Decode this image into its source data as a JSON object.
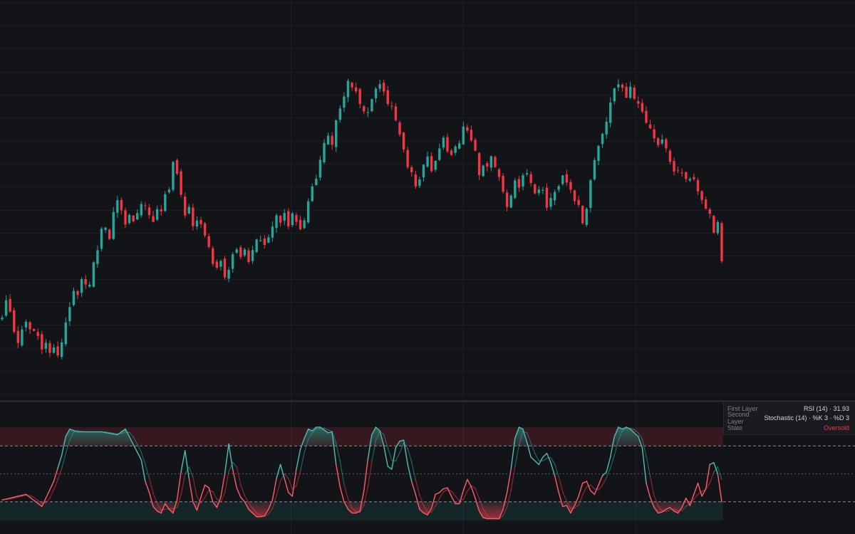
{
  "chart_data": [
    {
      "type": "candlestick",
      "title": "",
      "up_color": "#26a69a",
      "down_color": "#f23645",
      "grid": true,
      "bars": [
        [
          1,
          428
        ],
        [
          2,
          438
        ],
        [
          3,
          432
        ],
        [
          4,
          416
        ],
        [
          5,
          412
        ],
        [
          6,
          419
        ],
        [
          7,
          424
        ],
        [
          8,
          421
        ],
        [
          9,
          420
        ],
        [
          10,
          414
        ],
        [
          11,
          405
        ],
        [
          12,
          409
        ],
        [
          13,
          404
        ],
        [
          14,
          407
        ],
        [
          15,
          402
        ],
        [
          16,
          409
        ],
        [
          17,
          423
        ],
        [
          18,
          434
        ],
        [
          19,
          445
        ],
        [
          20,
          440
        ],
        [
          21,
          452
        ],
        [
          22,
          449
        ],
        [
          23,
          447
        ],
        [
          24,
          460
        ],
        [
          25,
          470
        ],
        [
          26,
          481
        ],
        [
          27,
          485
        ],
        [
          28,
          478
        ],
        [
          29,
          492
        ],
        [
          30,
          500
        ],
        [
          31,
          496
        ],
        [
          32,
          487
        ],
        [
          33,
          493
        ],
        [
          34,
          488
        ],
        [
          35,
          491
        ],
        [
          36,
          499
        ],
        [
          37,
          496
        ],
        [
          38,
          492
        ],
        [
          39,
          488
        ],
        [
          40,
          495
        ],
        [
          41,
          494
        ],
        [
          42,
          503
        ],
        [
          43,
          509
        ],
        [
          44,
          523
        ],
        [
          45,
          517
        ],
        [
          46,
          505
        ],
        [
          47,
          491
        ],
        [
          48,
          498
        ],
        [
          49,
          484
        ],
        [
          50,
          489
        ],
        [
          51,
          487
        ],
        [
          52,
          478
        ],
        [
          53,
          471
        ],
        [
          54,
          460
        ],
        [
          55,
          458
        ],
        [
          56,
          461
        ],
        [
          57,
          453
        ],
        [
          58,
          457
        ],
        [
          59,
          465
        ],
        [
          60,
          469
        ],
        [
          61,
          466
        ],
        [
          62,
          470
        ],
        [
          63,
          462
        ],
        [
          64,
          470
        ],
        [
          65,
          475
        ],
        [
          66,
          477
        ],
        [
          67,
          471
        ],
        [
          68,
          478
        ],
        [
          69,
          485
        ],
        [
          70,
          490
        ],
        [
          71,
          486
        ],
        [
          72,
          493
        ],
        [
          73,
          483
        ],
        [
          74,
          491
        ],
        [
          75,
          488
        ],
        [
          76,
          484
        ],
        [
          77,
          489
        ],
        [
          78,
          499
        ],
        [
          79,
          508
        ],
        [
          80,
          514
        ],
        [
          81,
          527
        ],
        [
          82,
          536
        ],
        [
          83,
          541
        ],
        [
          84,
          537
        ],
        [
          85,
          552
        ],
        [
          86,
          557
        ],
        [
          87,
          567
        ],
        [
          88,
          575
        ],
        [
          89,
          571
        ],
        [
          90,
          568
        ],
        [
          91,
          563
        ],
        [
          92,
          557
        ],
        [
          93,
          555
        ],
        [
          94,
          566
        ],
        [
          95,
          570
        ],
        [
          96,
          574
        ],
        [
          97,
          568
        ],
        [
          98,
          562
        ],
        [
          99,
          558
        ],
        [
          100,
          551
        ],
        [
          101,
          540
        ],
        [
          102,
          532
        ],
        [
          103,
          522
        ],
        [
          104,
          518
        ],
        [
          105,
          508
        ],
        [
          106,
          512
        ],
        [
          107,
          522
        ],
        [
          108,
          528
        ],
        [
          109,
          518
        ],
        [
          110,
          525
        ],
        [
          111,
          535
        ],
        [
          112,
          540
        ],
        [
          113,
          532
        ],
        [
          114,
          529
        ],
        [
          115,
          534
        ],
        [
          116,
          537
        ],
        [
          117,
          545
        ],
        [
          118,
          545
        ],
        [
          119,
          540
        ],
        [
          120,
          530
        ],
        [
          121,
          518
        ],
        [
          122,
          524
        ],
        [
          123,
          521
        ],
        [
          124,
          527
        ],
        [
          125,
          523
        ],
        [
          126,
          514
        ],
        [
          127,
          506
        ],
        [
          128,
          495
        ],
        [
          129,
          505
        ],
        [
          130,
          513
        ],
        [
          131,
          510
        ],
        [
          132,
          516
        ],
        [
          133,
          518
        ],
        [
          134,
          512
        ],
        [
          135,
          505
        ],
        [
          136,
          508
        ],
        [
          137,
          505
        ],
        [
          138,
          494
        ],
        [
          139,
          500
        ],
        [
          140,
          507
        ],
        [
          141,
          511
        ],
        [
          142,
          518
        ],
        [
          143,
          512
        ],
        [
          144,
          509
        ],
        [
          145,
          499
        ],
        [
          146,
          496
        ],
        [
          147,
          486
        ],
        [
          148,
          494
        ],
        [
          149,
          512
        ],
        [
          150,
          524
        ],
        [
          151,
          533
        ],
        [
          152,
          542
        ],
        [
          153,
          549
        ],
        [
          154,
          561
        ],
        [
          155,
          569
        ],
        [
          156,
          573
        ],
        [
          157,
          570
        ],
        [
          158,
          566
        ],
        [
          159,
          572
        ],
        [
          160,
          564
        ],
        [
          161,
          561
        ],
        [
          162,
          557
        ],
        [
          163,
          550
        ],
        [
          164,
          546
        ],
        [
          165,
          540
        ],
        [
          166,
          535
        ],
        [
          167,
          537
        ],
        [
          168,
          533
        ],
        [
          169,
          525
        ],
        [
          170,
          520
        ],
        [
          171,
          521
        ],
        [
          172,
          518
        ],
        [
          173,
          515
        ],
        [
          174,
          512
        ],
        [
          175,
          512
        ],
        [
          176,
          505
        ],
        [
          177,
          500
        ],
        [
          178,
          495
        ],
        [
          179,
          492
        ],
        [
          180,
          480
        ],
        [
          181,
          488
        ],
        [
          182,
          469
        ]
      ],
      "oscillators": {
        "layout": "stacked two-layer",
        "overbought_level": 80,
        "middle_level": 50,
        "oversold_level": 20,
        "first_layer": "RSI (14)",
        "second_layer": "Stochastic (14) · %K 3 · %D 3",
        "stochastic_k_over_bars": [
          [
            1,
            22
          ],
          [
            7,
            28
          ],
          [
            11,
            15
          ],
          [
            14,
            42
          ],
          [
            16,
            70
          ],
          [
            17,
            90
          ],
          [
            18,
            98
          ],
          [
            20,
            95
          ],
          [
            26,
            95
          ],
          [
            30,
            92
          ],
          [
            32,
            98
          ],
          [
            36,
            65
          ],
          [
            37,
            42
          ],
          [
            38,
            30
          ],
          [
            39,
            15
          ],
          [
            40,
            10
          ],
          [
            41,
            8
          ],
          [
            42,
            18
          ],
          [
            43,
            12
          ],
          [
            44,
            8
          ],
          [
            45,
            22
          ],
          [
            46,
            52
          ],
          [
            47,
            75
          ],
          [
            48,
            45
          ],
          [
            49,
            20
          ],
          [
            50,
            11
          ],
          [
            51,
            25
          ],
          [
            52,
            38
          ],
          [
            53,
            35
          ],
          [
            54,
            20
          ],
          [
            55,
            14
          ],
          [
            56,
            25
          ],
          [
            57,
            50
          ],
          [
            58,
            82
          ],
          [
            59,
            55
          ],
          [
            60,
            35
          ],
          [
            61,
            25
          ],
          [
            62,
            20
          ],
          [
            63,
            12
          ],
          [
            64,
            8
          ],
          [
            65,
            4
          ],
          [
            66,
            4
          ],
          [
            67,
            5
          ],
          [
            68,
            12
          ],
          [
            69,
            22
          ],
          [
            70,
            45
          ],
          [
            71,
            60
          ],
          [
            72,
            45
          ],
          [
            73,
            30
          ],
          [
            74,
            26
          ],
          [
            75,
            55
          ],
          [
            76,
            76
          ],
          [
            77,
            88
          ],
          [
            78,
            98
          ],
          [
            79,
            96
          ],
          [
            80,
            100
          ],
          [
            81,
            100
          ],
          [
            82,
            97
          ],
          [
            83,
            94
          ],
          [
            84,
            95
          ],
          [
            85,
            60
          ],
          [
            86,
            36
          ],
          [
            87,
            20
          ],
          [
            88,
            12
          ],
          [
            89,
            8
          ],
          [
            90,
            8
          ],
          [
            91,
            10
          ],
          [
            92,
            32
          ],
          [
            93,
            66
          ],
          [
            94,
            92
          ],
          [
            95,
            100
          ],
          [
            96,
            96
          ],
          [
            97,
            80
          ],
          [
            98,
            58
          ],
          [
            99,
            55
          ],
          [
            100,
            78
          ],
          [
            101,
            85
          ],
          [
            102,
            86
          ],
          [
            103,
            60
          ],
          [
            104,
            42
          ],
          [
            105,
            28
          ],
          [
            106,
            12
          ],
          [
            107,
            8
          ],
          [
            108,
            6
          ],
          [
            109,
            13
          ],
          [
            110,
            28
          ],
          [
            111,
            30
          ],
          [
            112,
            34
          ],
          [
            113,
            35
          ],
          [
            114,
            26
          ],
          [
            115,
            18
          ],
          [
            116,
            18
          ],
          [
            117,
            32
          ],
          [
            118,
            44
          ],
          [
            119,
            36
          ],
          [
            120,
            24
          ],
          [
            121,
            10
          ],
          [
            122,
            3
          ],
          [
            123,
            2
          ],
          [
            124,
            2
          ],
          [
            125,
            2
          ],
          [
            126,
            2
          ],
          [
            127,
            12
          ],
          [
            128,
            30
          ],
          [
            129,
            55
          ],
          [
            130,
            88
          ],
          [
            131,
            100
          ],
          [
            132,
            98
          ],
          [
            133,
            84
          ],
          [
            134,
            68
          ],
          [
            135,
            64
          ],
          [
            136,
            60
          ],
          [
            137,
            68
          ],
          [
            138,
            72
          ],
          [
            139,
            62
          ],
          [
            140,
            48
          ],
          [
            141,
            30
          ],
          [
            142,
            15
          ],
          [
            143,
            16
          ],
          [
            144,
            8
          ],
          [
            145,
            16
          ],
          [
            146,
            26
          ],
          [
            147,
            40
          ],
          [
            148,
            42
          ],
          [
            149,
            32
          ],
          [
            150,
            28
          ],
          [
            151,
            38
          ],
          [
            152,
            48
          ],
          [
            153,
            52
          ],
          [
            154,
            68
          ],
          [
            155,
            90
          ],
          [
            156,
            100
          ],
          [
            157,
            98
          ],
          [
            158,
            100
          ],
          [
            159,
            98
          ],
          [
            160,
            94
          ],
          [
            161,
            90
          ],
          [
            162,
            78
          ],
          [
            163,
            40
          ],
          [
            164,
            25
          ],
          [
            165,
            14
          ],
          [
            166,
            8
          ],
          [
            167,
            9
          ],
          [
            168,
            12
          ],
          [
            169,
            14
          ],
          [
            170,
            10
          ],
          [
            171,
            8
          ],
          [
            172,
            14
          ],
          [
            173,
            24
          ],
          [
            174,
            16
          ],
          [
            175,
            28
          ],
          [
            176,
            40
          ],
          [
            177,
            26
          ],
          [
            178,
            34
          ],
          [
            179,
            60
          ],
          [
            180,
            62
          ],
          [
            181,
            50
          ],
          [
            182,
            20
          ]
        ]
      }
    }
  ],
  "legend": {
    "rows": [
      {
        "label": "First Layer",
        "value": "RSI (14) · 31.93"
      },
      {
        "label": "Second Layer",
        "value": "Stochastic (14) · %K 3 · %D 3"
      },
      {
        "label": "State",
        "value": "Oversold"
      }
    ]
  }
}
